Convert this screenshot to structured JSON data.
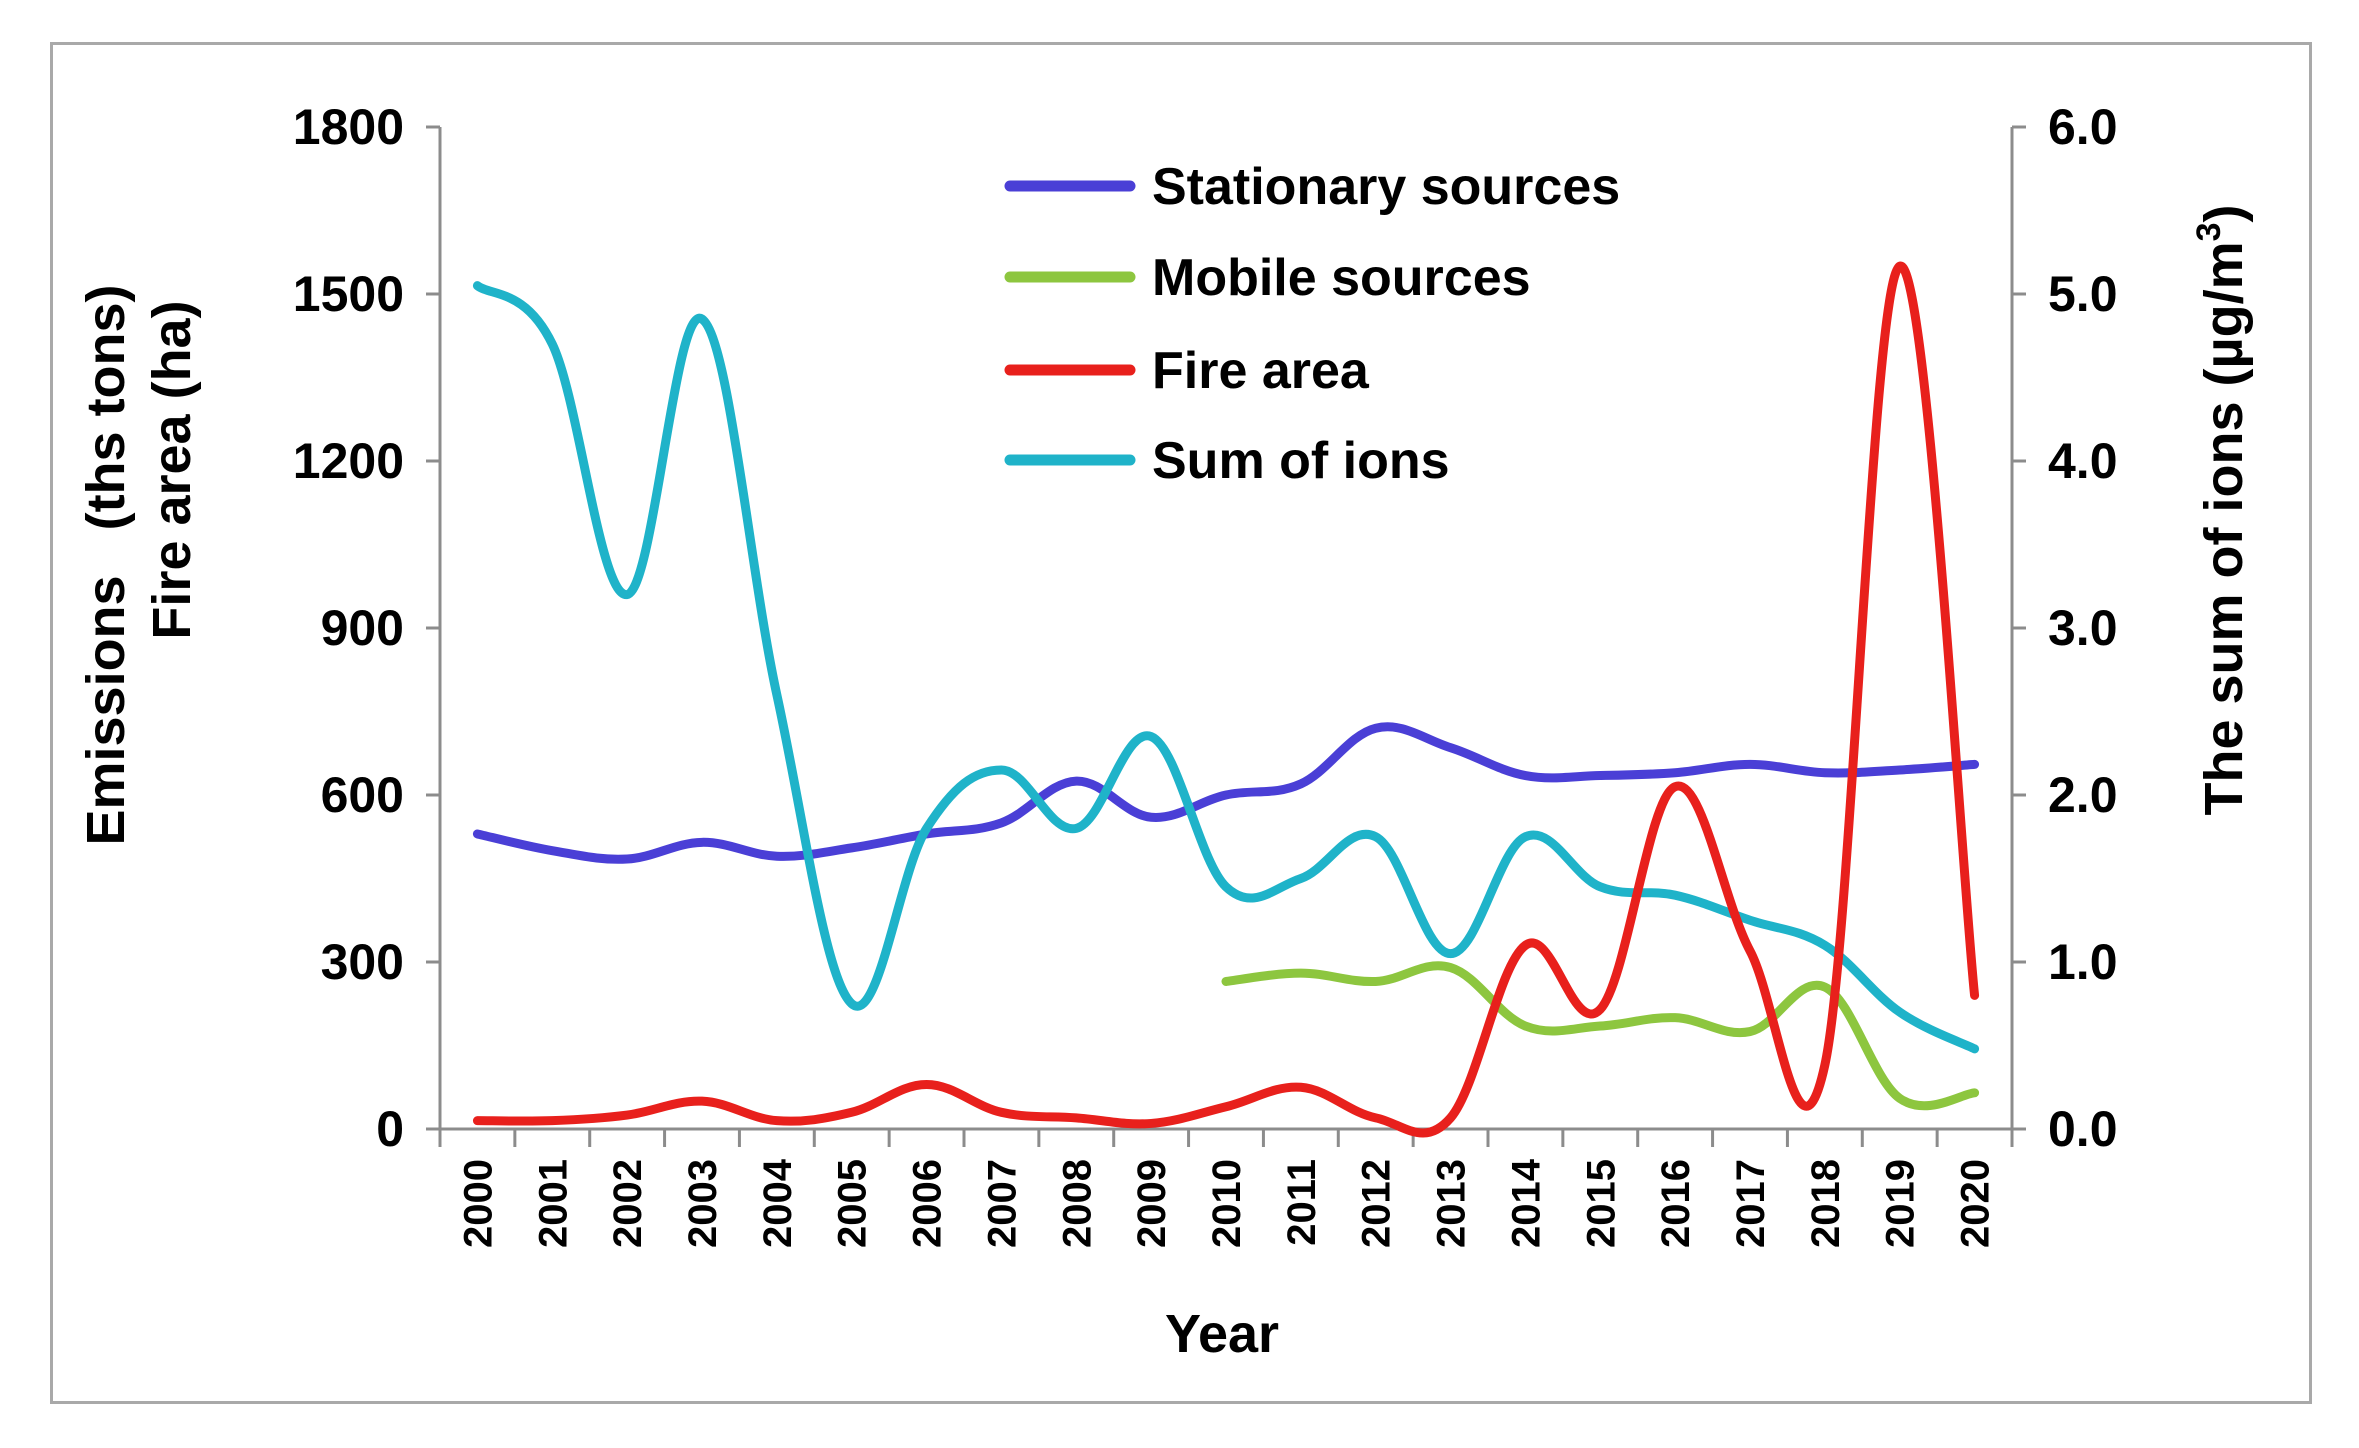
{
  "chart_data": {
    "type": "line",
    "xlabel": "Year",
    "ylabel_left_line1": "Emissions   (ths tons)",
    "ylabel_left_line2": "Fire area (ha)",
    "ylabel_right": "The sum of ions (µg/m",
    "ylabel_right_sup": "3",
    "ylabel_right_close": ")",
    "ylim_left": [
      0,
      1800
    ],
    "ylim_right": [
      0,
      6
    ],
    "yticks_left": [
      "0",
      "300",
      "600",
      "900",
      "1200",
      "1500",
      "1800"
    ],
    "yticks_right": [
      "0.0",
      "1.0",
      "2.0",
      "3.0",
      "4.0",
      "5.0",
      "6.0"
    ],
    "categories": [
      "2000",
      "2001",
      "2002",
      "2003",
      "2004",
      "2005",
      "2006",
      "2007",
      "2008",
      "2009",
      "2010",
      "2011",
      "2012",
      "2013",
      "2014",
      "2015",
      "2016",
      "2017",
      "2018",
      "2019",
      "2020"
    ],
    "series": [
      {
        "name": "Stationary sources",
        "axis": "left",
        "color": "#4a3fd6",
        "values": [
          530,
          500,
          485,
          515,
          490,
          505,
          530,
          550,
          625,
          560,
          600,
          620,
          720,
          685,
          635,
          635,
          640,
          655,
          640,
          645,
          655
        ]
      },
      {
        "name": "Mobile sources",
        "axis": "left",
        "color": "#8dc63f",
        "values": [
          null,
          null,
          null,
          null,
          null,
          null,
          null,
          null,
          null,
          null,
          265,
          280,
          265,
          290,
          185,
          185,
          200,
          175,
          255,
          55,
          65
        ]
      },
      {
        "name": "Fire area",
        "axis": "left",
        "color": "#e8201c",
        "values": [
          15,
          15,
          25,
          50,
          15,
          30,
          80,
          30,
          20,
          10,
          40,
          75,
          20,
          20,
          330,
          215,
          615,
          320,
          115,
          1550,
          240
        ]
      },
      {
        "name": "Sum of ions",
        "axis": "right",
        "color": "#1fb3c9",
        "values": [
          5.05,
          4.7,
          3.2,
          4.85,
          2.6,
          0.75,
          1.8,
          2.15,
          1.8,
          2.35,
          1.45,
          1.5,
          1.75,
          1.05,
          1.75,
          1.45,
          1.4,
          1.25,
          1.1,
          0.7,
          0.48
        ]
      }
    ],
    "legend": "top-center"
  }
}
